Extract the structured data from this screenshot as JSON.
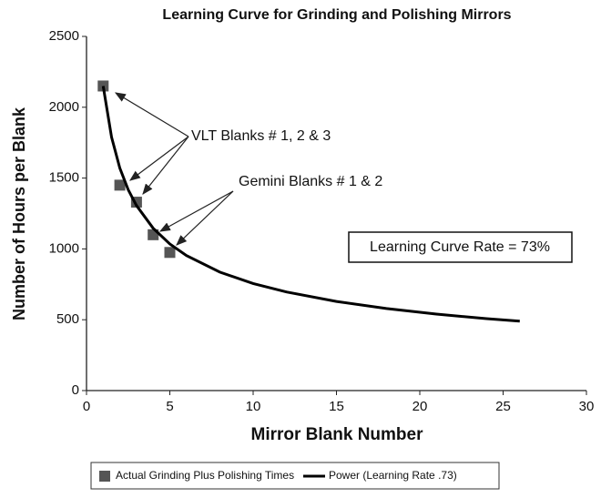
{
  "chart_data": {
    "type": "scatter",
    "title": "Learning Curve for Grinding and Polishing Mirrors",
    "x_label": "Mirror Blank Number",
    "y_label": "Number of Hours per Blank",
    "xlim": [
      0,
      30
    ],
    "xticks": [
      0,
      5,
      10,
      15,
      20,
      25,
      30
    ],
    "ylim": [
      0,
      2500
    ],
    "yticks": [
      0,
      500,
      1000,
      1500,
      2000,
      2500
    ],
    "series": [
      {
        "name": "Actual Grinding Plus Polishing Times",
        "color": "#555555",
        "kind": "points",
        "x": [
          1,
          2,
          3,
          4,
          5
        ],
        "values": [
          2150,
          1450,
          1330,
          1100,
          975
        ]
      },
      {
        "name": "Power (Learning Rate .73)",
        "color": "#000000",
        "kind": "line",
        "x": [
          1,
          1.5,
          2,
          2.5,
          3,
          4,
          5,
          6,
          8,
          10,
          12,
          15,
          18,
          21,
          24,
          26
        ],
        "values": [
          2150,
          1789,
          1570,
          1418,
          1306,
          1146,
          1035,
          953,
          836,
          756,
          696,
          629,
          579,
          540,
          508,
          490
        ]
      }
    ],
    "annotations": [
      "VLT Blanks # 1, 2 & 3",
      "Gemini Blanks # 1 & 2",
      "Learning Curve Rate = 73%"
    ],
    "legend": "bottom"
  }
}
